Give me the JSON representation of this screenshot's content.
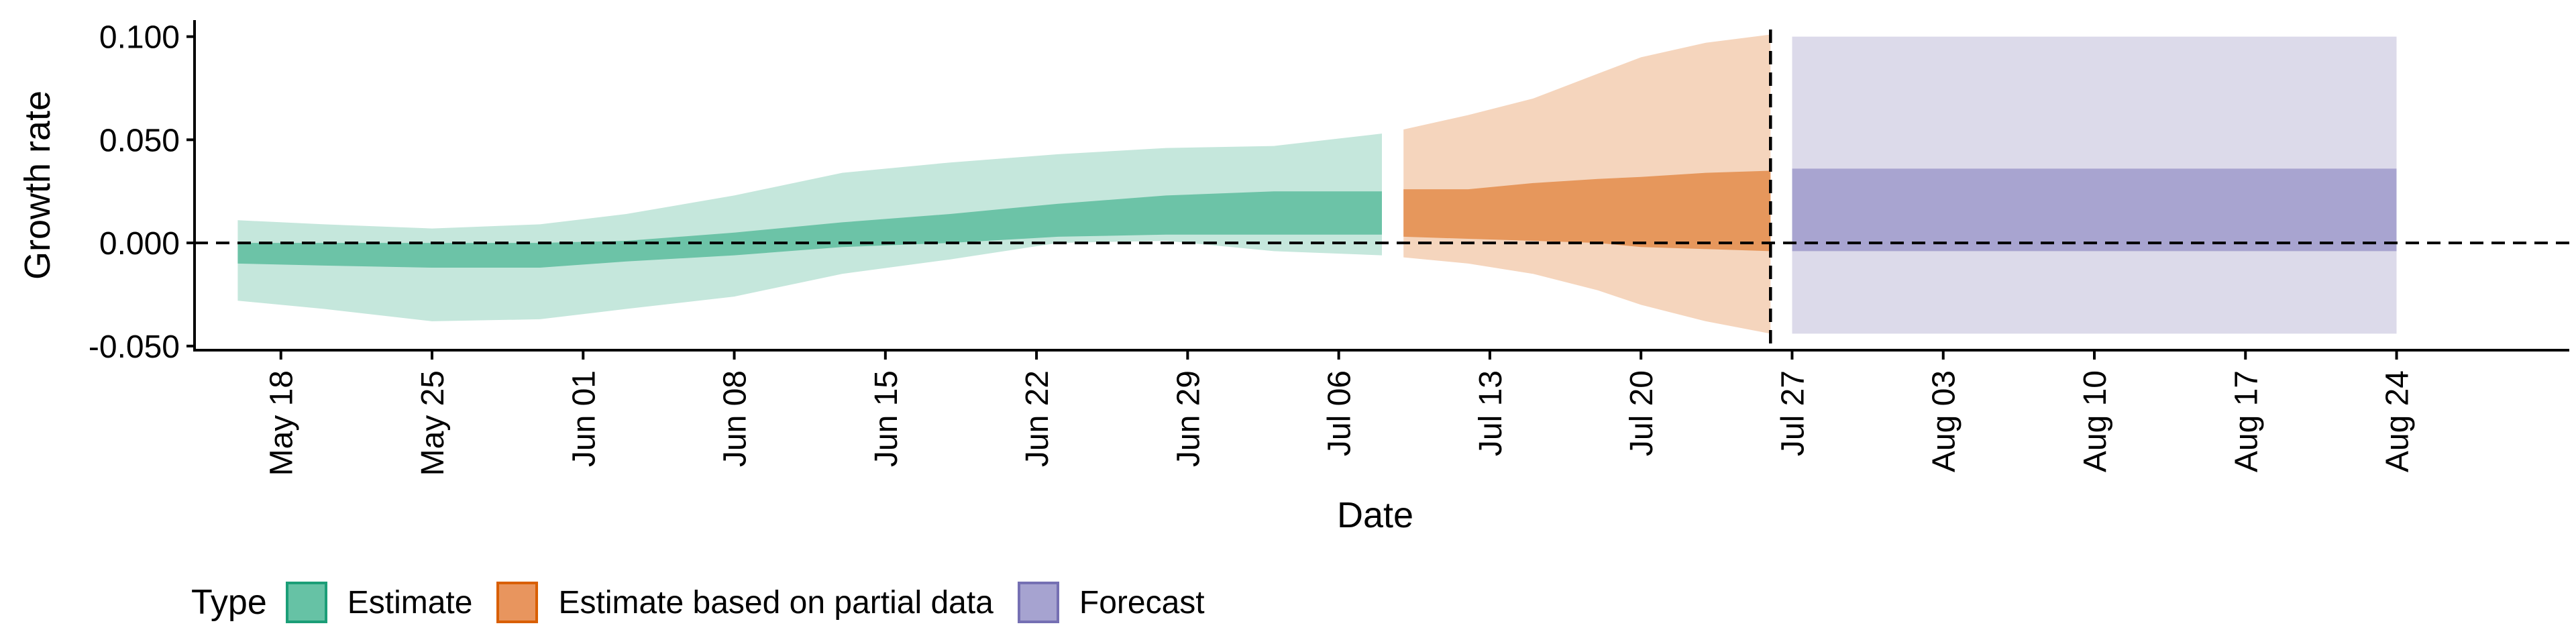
{
  "chart_data": {
    "type": "area",
    "title": "",
    "xlabel": "Date",
    "ylabel": "Growth rate",
    "ylim": [
      -0.052,
      0.108
    ],
    "y_ticks": [
      "0.100",
      "0.050",
      "0.000",
      "-0.050"
    ],
    "y_tick_values": [
      0.1,
      0.05,
      0.0,
      -0.05
    ],
    "x_range": [
      "2020-05-14",
      "2020-09-01"
    ],
    "x_ticks": [
      "May 18",
      "May 25",
      "Jun 01",
      "Jun 08",
      "Jun 15",
      "Jun 22",
      "Jun 29",
      "Jul 06",
      "Jul 13",
      "Jul 20",
      "Jul 27",
      "Aug 03",
      "Aug 10",
      "Aug 17",
      "Aug 24"
    ],
    "x_tick_dates": [
      "2020-05-18",
      "2020-05-25",
      "2020-06-01",
      "2020-06-08",
      "2020-06-15",
      "2020-06-22",
      "2020-06-29",
      "2020-07-06",
      "2020-07-13",
      "2020-07-20",
      "2020-07-27",
      "2020-08-03",
      "2020-08-10",
      "2020-08-17",
      "2020-08-24"
    ],
    "reference_lines": {
      "horizontal_y": 0.0,
      "vertical_date": "2020-07-26"
    },
    "grid": false,
    "legend_position": "bottom-left",
    "legend": {
      "title": "Type",
      "items": [
        {
          "label": "Estimate",
          "fill": "#66c2a5",
          "border": "#1b9e77"
        },
        {
          "label": "Estimate based on partial data",
          "fill": "#e8955e",
          "border": "#d95f02"
        },
        {
          "label": "Forecast",
          "fill": "#a6a3d0",
          "border": "#7570b3"
        }
      ]
    },
    "series": [
      {
        "name": "Estimate",
        "outer_color": "#c5e7dc",
        "inner_color": "#6cc3a7",
        "points": [
          {
            "x": "2020-05-16",
            "lo90": -0.028,
            "lo50": -0.01,
            "hi50": 0.0,
            "hi90": 0.011
          },
          {
            "x": "2020-05-20",
            "lo90": -0.032,
            "lo50": -0.011,
            "hi50": 0.0,
            "hi90": 0.009
          },
          {
            "x": "2020-05-25",
            "lo90": -0.038,
            "lo50": -0.012,
            "hi50": 0.0,
            "hi90": 0.007
          },
          {
            "x": "2020-05-30",
            "lo90": -0.037,
            "lo50": -0.012,
            "hi50": 0.0,
            "hi90": 0.009
          },
          {
            "x": "2020-06-03",
            "lo90": -0.032,
            "lo50": -0.009,
            "hi50": 0.001,
            "hi90": 0.014
          },
          {
            "x": "2020-06-08",
            "lo90": -0.026,
            "lo50": -0.006,
            "hi50": 0.005,
            "hi90": 0.023
          },
          {
            "x": "2020-06-13",
            "lo90": -0.015,
            "lo50": -0.002,
            "hi50": 0.01,
            "hi90": 0.034
          },
          {
            "x": "2020-06-18",
            "lo90": -0.008,
            "lo50": 0.0,
            "hi50": 0.014,
            "hi90": 0.039
          },
          {
            "x": "2020-06-23",
            "lo90": 0.0,
            "lo50": 0.003,
            "hi50": 0.019,
            "hi90": 0.043
          },
          {
            "x": "2020-06-28",
            "lo90": 0.001,
            "lo50": 0.004,
            "hi50": 0.023,
            "hi90": 0.046
          },
          {
            "x": "2020-07-03",
            "lo90": -0.004,
            "lo50": 0.004,
            "hi50": 0.025,
            "hi90": 0.047
          },
          {
            "x": "2020-07-08",
            "lo90": -0.006,
            "lo50": 0.004,
            "hi50": 0.025,
            "hi90": 0.053
          }
        ]
      },
      {
        "name": "Estimate based on partial data",
        "outer_color": "#f5d5bd",
        "inner_color": "#e6975c",
        "points": [
          {
            "x": "2020-07-09",
            "lo90": -0.007,
            "lo50": 0.003,
            "hi50": 0.026,
            "hi90": 0.055
          },
          {
            "x": "2020-07-12",
            "lo90": -0.01,
            "lo50": 0.002,
            "hi50": 0.026,
            "hi90": 0.062
          },
          {
            "x": "2020-07-15",
            "lo90": -0.015,
            "lo50": 0.001,
            "hi50": 0.029,
            "hi90": 0.07
          },
          {
            "x": "2020-07-18",
            "lo90": -0.023,
            "lo50": 0.0,
            "hi50": 0.031,
            "hi90": 0.082
          },
          {
            "x": "2020-07-20",
            "lo90": -0.03,
            "lo50": -0.002,
            "hi50": 0.032,
            "hi90": 0.09
          },
          {
            "x": "2020-07-23",
            "lo90": -0.038,
            "lo50": -0.003,
            "hi50": 0.034,
            "hi90": 0.097
          },
          {
            "x": "2020-07-26",
            "lo90": -0.044,
            "lo50": -0.004,
            "hi50": 0.035,
            "hi90": 0.101
          }
        ]
      },
      {
        "name": "Forecast",
        "outer_color": "#dcdaea",
        "inner_color": "#a8a4d0",
        "points": [
          {
            "x": "2020-07-27",
            "lo90": -0.044,
            "lo50": -0.004,
            "hi50": 0.036,
            "hi90": 0.1
          },
          {
            "x": "2020-08-24",
            "lo90": -0.044,
            "lo50": -0.004,
            "hi50": 0.036,
            "hi90": 0.1
          }
        ]
      }
    ]
  }
}
